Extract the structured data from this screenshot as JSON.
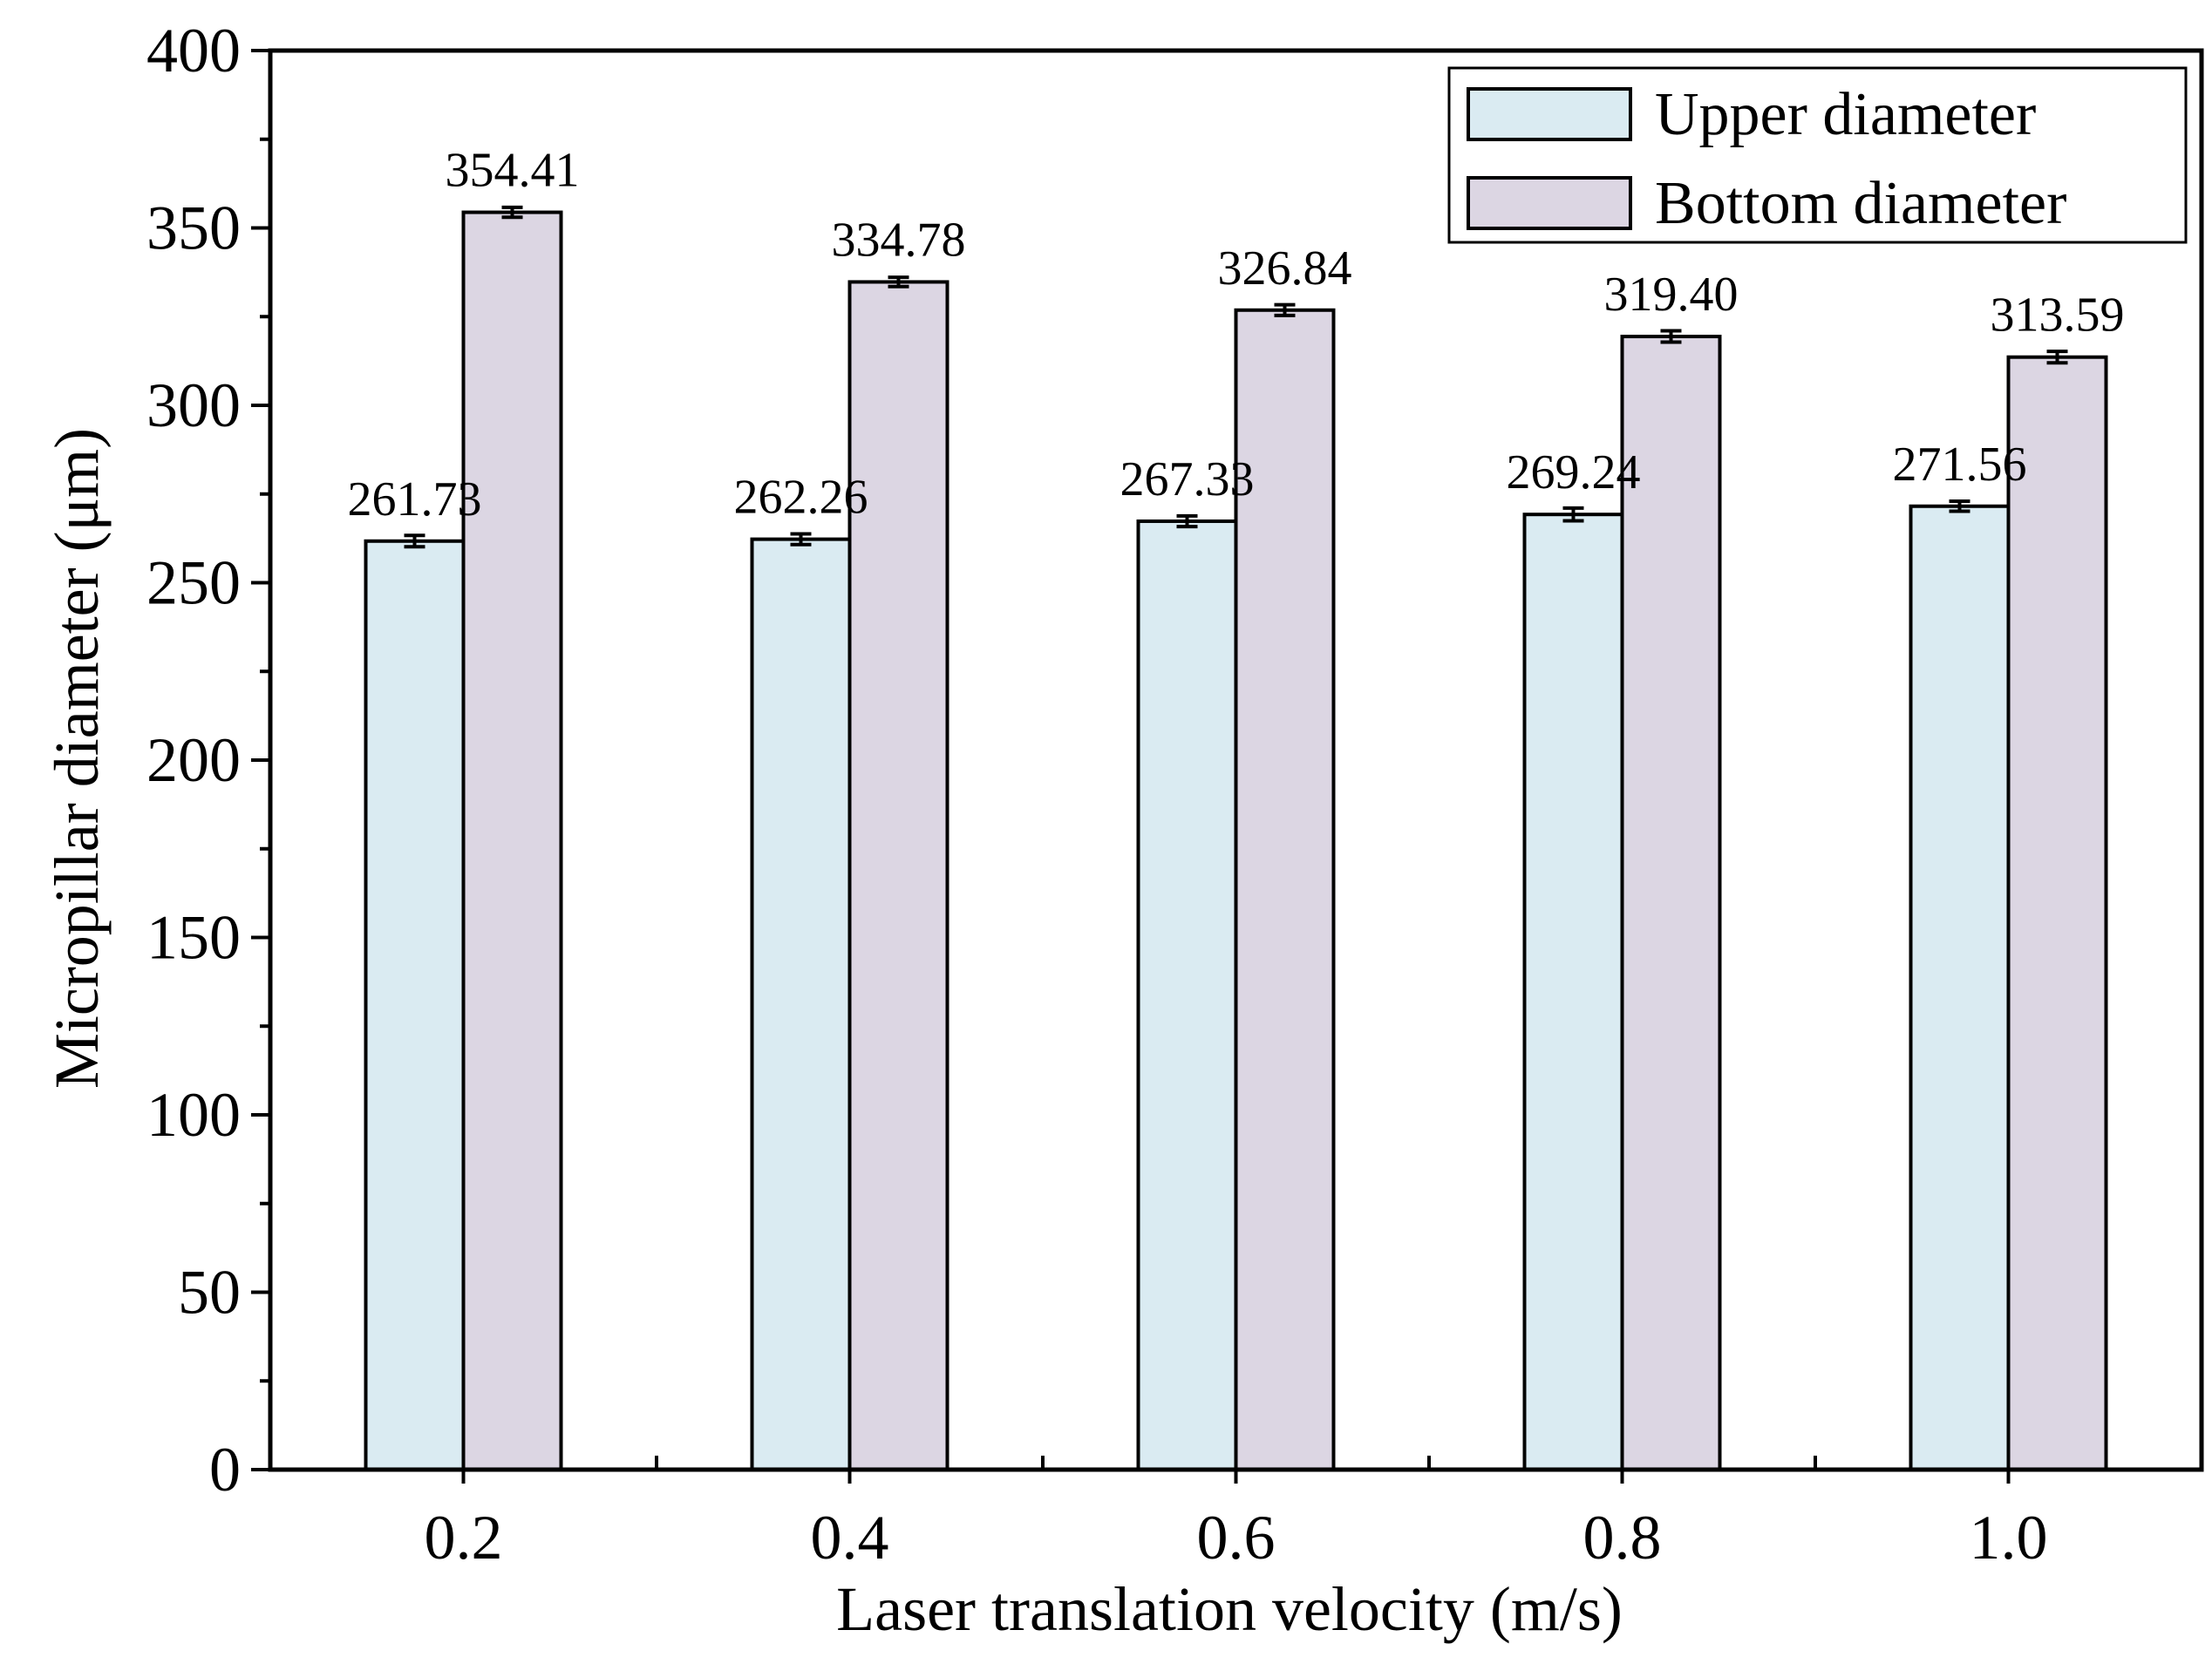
{
  "chart_data": {
    "type": "bar",
    "title": "",
    "xlabel": "Laser translation velocity (m/s)",
    "ylabel": "Micropillar diameter (μm)",
    "categories": [
      "0.2",
      "0.4",
      "0.6",
      "0.8",
      "1.0"
    ],
    "ylim": [
      0,
      400
    ],
    "yticks": [
      0,
      50,
      100,
      150,
      200,
      250,
      300,
      350,
      400
    ],
    "ytick_labels": [
      "0",
      "50",
      "100",
      "150",
      "200",
      "250",
      "300",
      "350",
      "400"
    ],
    "grid": false,
    "legend_position": "top-right",
    "series": [
      {
        "name": "Upper diameter",
        "color": "#daebf2",
        "values": [
          261.73,
          262.26,
          267.33,
          269.24,
          271.56
        ],
        "labels": [
          "261.73",
          "262.26",
          "267.33",
          "269.24",
          "271.56"
        ],
        "errors": [
          1.6,
          1.5,
          1.5,
          1.8,
          1.4
        ]
      },
      {
        "name": "Bottom diameter",
        "color": "#dcd6e3",
        "values": [
          354.41,
          334.78,
          326.84,
          319.4,
          313.59
        ],
        "labels": [
          "354.41",
          "334.78",
          "326.84",
          "319.40",
          "313.59"
        ],
        "errors": [
          1.4,
          1.3,
          1.5,
          1.6,
          1.6
        ]
      }
    ]
  }
}
